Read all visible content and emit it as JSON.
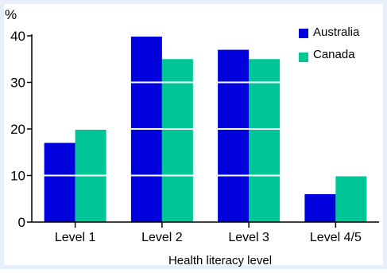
{
  "chart_data": {
    "type": "bar",
    "title": "",
    "xlabel": "Health literacy level",
    "ylabel": "%",
    "ylim": [
      0,
      40
    ],
    "yticks": [
      0,
      10,
      20,
      30,
      40
    ],
    "categories": [
      "Level 1",
      "Level 2",
      "Level 3",
      "Level 4/5"
    ],
    "series": [
      {
        "name": "Australia",
        "values": [
          17,
          40,
          37,
          6
        ],
        "color": "#0000dd"
      },
      {
        "name": "Canada",
        "values": [
          20,
          35,
          35,
          10
        ],
        "color": "#00c597"
      }
    ],
    "grid": "horizontal lines drawn over bars",
    "legend": "top-right"
  },
  "colors": {
    "background": "#e6effa",
    "plot_background": "#ffffff",
    "gridline": "#ffffff"
  }
}
